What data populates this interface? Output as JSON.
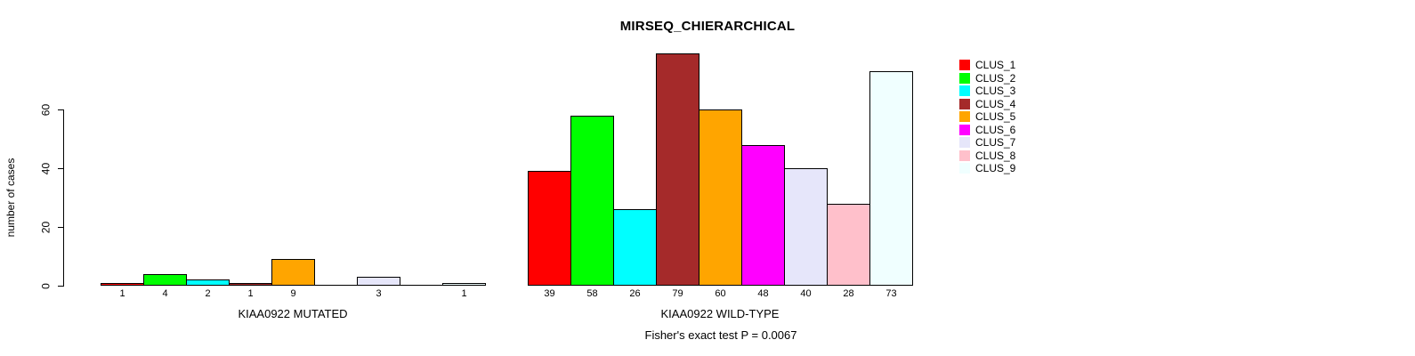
{
  "chart_data": {
    "type": "bar",
    "title": "MIRSEQ_CHIERARCHICAL",
    "ylabel": "number of cases",
    "xlabel": "",
    "yticks": [
      "0",
      "20",
      "40",
      "60"
    ],
    "ylim": [
      0,
      79
    ],
    "grid": false,
    "legend_position": "right-outside",
    "legend": [
      {
        "label": "CLUS_1",
        "color": "#FF0000"
      },
      {
        "label": "CLUS_2",
        "color": "#00FF00"
      },
      {
        "label": "CLUS_3",
        "color": "#00FFFF"
      },
      {
        "label": "CLUS_4",
        "color": "#A52A2A"
      },
      {
        "label": "CLUS_5",
        "color": "#FFA500"
      },
      {
        "label": "CLUS_6",
        "color": "#FF00FF"
      },
      {
        "label": "CLUS_7",
        "color": "#E6E6FA"
      },
      {
        "label": "CLUS_8",
        "color": "#FFC0CB"
      },
      {
        "label": "CLUS_9",
        "color": "#F0FFFF"
      }
    ],
    "groups": [
      {
        "label": "KIAA0922 MUTATED",
        "values": [
          1,
          4,
          2,
          1,
          9,
          0,
          3,
          0,
          1
        ]
      },
      {
        "label": "KIAA0922 WILD-TYPE",
        "values": [
          39,
          58,
          26,
          79,
          60,
          48,
          40,
          28,
          73
        ]
      }
    ],
    "footnote": "Fisher's exact test P = 0.0067",
    "axis_color": "#000000",
    "bar_border_color": "#000000"
  }
}
